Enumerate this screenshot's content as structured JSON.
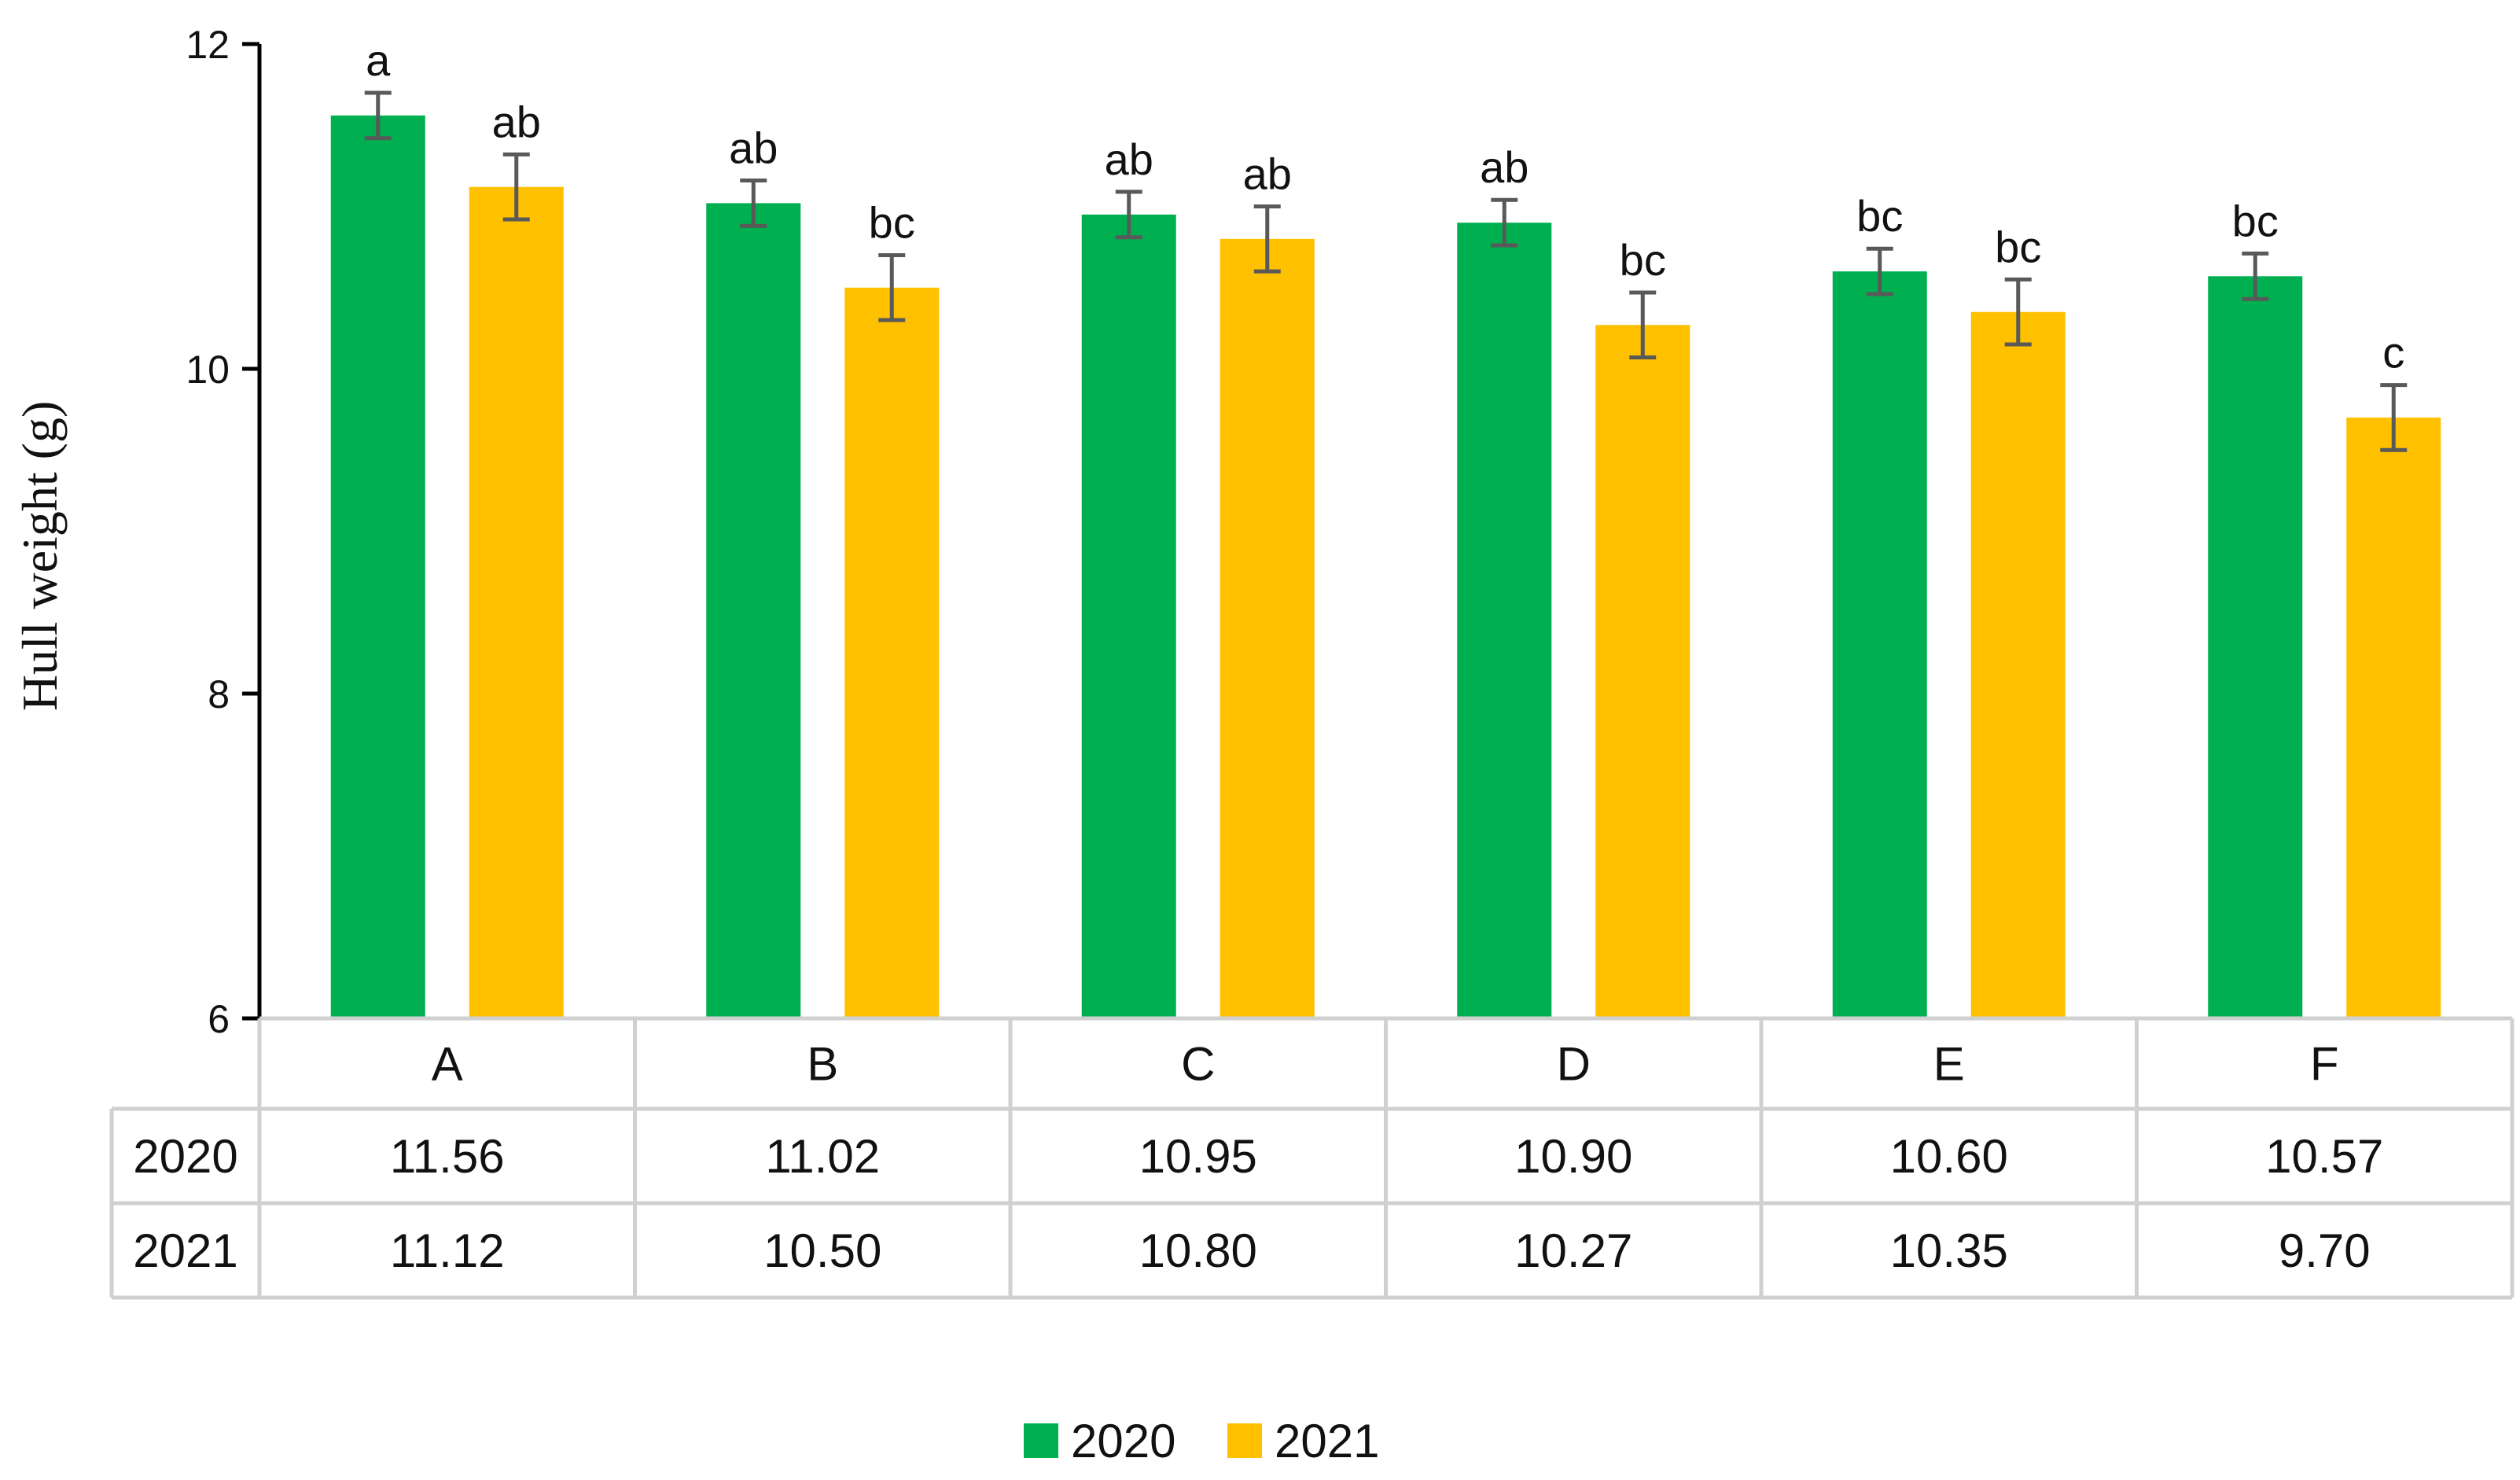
{
  "chart_data": {
    "type": "bar",
    "ylabel": "Hull weight (g)",
    "ylim": [
      6,
      12
    ],
    "yticks": [
      6,
      8,
      10,
      12
    ],
    "categories": [
      "A",
      "B",
      "C",
      "D",
      "E",
      "F"
    ],
    "series": [
      {
        "name": "2020",
        "color": "#00b050",
        "values": [
          11.56,
          11.02,
          10.95,
          10.9,
          10.6,
          10.57
        ],
        "value_labels": [
          "11.56",
          "11.02",
          "10.95",
          "10.90",
          "10.60",
          "10.57"
        ],
        "errors": [
          0.14,
          0.14,
          0.14,
          0.14,
          0.14,
          0.14
        ],
        "letters": [
          "a",
          "ab",
          "ab",
          "ab",
          "bc",
          "bc"
        ]
      },
      {
        "name": "2021",
        "color": "#ffc000",
        "values": [
          11.12,
          10.5,
          10.8,
          10.27,
          10.35,
          9.7
        ],
        "value_labels": [
          "11.12",
          "10.50",
          "10.80",
          "10.27",
          "10.35",
          "9.70"
        ],
        "errors": [
          0.2,
          0.2,
          0.2,
          0.2,
          0.2,
          0.2
        ],
        "letters": [
          "ab",
          "bc",
          "ab",
          "bc",
          "bc",
          "c"
        ]
      }
    ],
    "error_bar_color": "#595959",
    "legend_position": "bottom-center",
    "data_table": true,
    "grid": false
  }
}
